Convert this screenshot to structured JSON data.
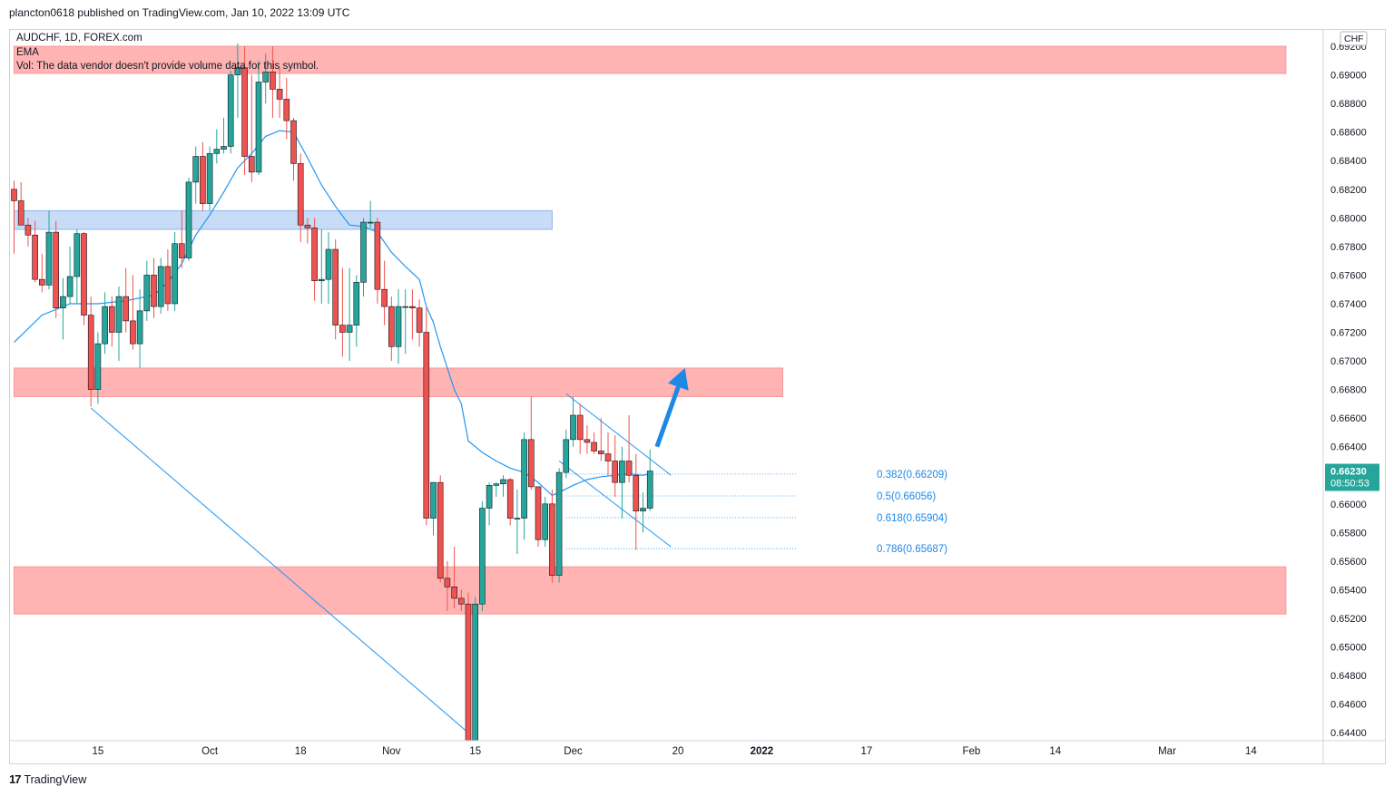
{
  "header": {
    "published": "plancton0618 published on TradingView.com, Jan 10, 2022 13:09 UTC"
  },
  "legend": {
    "symbol": "AUDCHF, 1D, FOREX.com",
    "ema": "EMA",
    "vol": "Vol: The data vendor doesn't provide volume data for this symbol."
  },
  "footer": {
    "brand": "TradingView",
    "logo": "17"
  },
  "colors": {
    "up": "#26a69a",
    "down": "#ef5350",
    "ema": "#2196f3",
    "zone_red": "#ffb3b3",
    "zone_blue": "#c8dcf7",
    "arrow": "#1e88e5"
  },
  "chart_data": {
    "type": "candlestick",
    "symbol": "AUDCHF",
    "interval": "1D",
    "currency": "CHF",
    "ylim": [
      0.6433,
      0.6925
    ],
    "y_ticks": [
      "0.64400",
      "0.64600",
      "0.64800",
      "0.65000",
      "0.65200",
      "0.65400",
      "0.65600",
      "0.65800",
      "0.66000",
      "0.66200",
      "0.66400",
      "0.66600",
      "0.66800",
      "0.67000",
      "0.67200",
      "0.67400",
      "0.67600",
      "0.67800",
      "0.68000",
      "0.68200",
      "0.68400",
      "0.68600",
      "0.68800",
      "0.69000",
      "0.69200"
    ],
    "x_ticks": [
      {
        "label": "15",
        "day": -52
      },
      {
        "label": "Oct",
        "day": -36
      },
      {
        "label": "18",
        "day": -23
      },
      {
        "label": "Nov",
        "day": -10
      },
      {
        "label": "15",
        "day": 2
      },
      {
        "label": "Dec",
        "day": 16
      },
      {
        "label": "20",
        "day": 31
      },
      {
        "label": "2022",
        "day": 43
      },
      {
        "label": "17",
        "day": 58
      },
      {
        "label": "Feb",
        "day": 73
      },
      {
        "label": "14",
        "day": 85
      },
      {
        "label": "Mar",
        "day": 101
      },
      {
        "label": "14",
        "day": 113
      }
    ],
    "ohlc": [
      [
        -64,
        0.682,
        0.6826,
        0.6775,
        0.6812
      ],
      [
        -63,
        0.6812,
        0.6825,
        0.6795,
        0.6795
      ],
      [
        -62,
        0.6795,
        0.68,
        0.678,
        0.6788
      ],
      [
        -61,
        0.6788,
        0.6798,
        0.6755,
        0.6757
      ],
      [
        -60,
        0.6757,
        0.6775,
        0.6748,
        0.6753
      ],
      [
        -59,
        0.6753,
        0.6805,
        0.675,
        0.679
      ],
      [
        -58,
        0.679,
        0.6798,
        0.673,
        0.6737
      ],
      [
        -57,
        0.6737,
        0.6758,
        0.6715,
        0.6745
      ],
      [
        -56,
        0.6745,
        0.678,
        0.674,
        0.6759
      ],
      [
        -55,
        0.6759,
        0.6792,
        0.674,
        0.6789
      ],
      [
        -54,
        0.6789,
        0.679,
        0.6725,
        0.6732
      ],
      [
        -53,
        0.6732,
        0.6745,
        0.6668,
        0.668
      ],
      [
        -52,
        0.668,
        0.672,
        0.667,
        0.6712
      ],
      [
        -51,
        0.6712,
        0.6748,
        0.6705,
        0.6738
      ],
      [
        -50,
        0.6738,
        0.6745,
        0.671,
        0.672
      ],
      [
        -49,
        0.672,
        0.6752,
        0.67,
        0.6745
      ],
      [
        -48,
        0.6745,
        0.6765,
        0.672,
        0.6728
      ],
      [
        -47,
        0.6728,
        0.676,
        0.6708,
        0.6712
      ],
      [
        -46,
        0.6712,
        0.675,
        0.6695,
        0.6735
      ],
      [
        -45,
        0.6735,
        0.677,
        0.6728,
        0.676
      ],
      [
        -44,
        0.676,
        0.6772,
        0.673,
        0.6738
      ],
      [
        -43,
        0.6738,
        0.6772,
        0.6733,
        0.6766
      ],
      [
        -42,
        0.6766,
        0.6778,
        0.6735,
        0.674
      ],
      [
        -41,
        0.674,
        0.679,
        0.6735,
        0.6782
      ],
      [
        -40,
        0.6782,
        0.6805,
        0.6765,
        0.6772
      ],
      [
        -39,
        0.6772,
        0.6828,
        0.677,
        0.6825
      ],
      [
        -38,
        0.6825,
        0.685,
        0.681,
        0.6843
      ],
      [
        -37,
        0.6843,
        0.6853,
        0.6805,
        0.681
      ],
      [
        -36,
        0.681,
        0.685,
        0.6805,
        0.6845
      ],
      [
        -35,
        0.6845,
        0.6862,
        0.6838,
        0.6848
      ],
      [
        -34,
        0.6848,
        0.687,
        0.6845,
        0.685
      ],
      [
        -33,
        0.685,
        0.6903,
        0.6845,
        0.69
      ],
      [
        -32,
        0.69,
        0.6922,
        0.687,
        0.6905
      ],
      [
        -31,
        0.6905,
        0.692,
        0.683,
        0.6843
      ],
      [
        -30,
        0.6843,
        0.69,
        0.6825,
        0.6832
      ],
      [
        -29,
        0.6832,
        0.691,
        0.683,
        0.6895
      ],
      [
        -28,
        0.6895,
        0.6915,
        0.688,
        0.6902
      ],
      [
        -27,
        0.6902,
        0.692,
        0.687,
        0.689
      ],
      [
        -26,
        0.689,
        0.6905,
        0.687,
        0.6883
      ],
      [
        -25,
        0.6883,
        0.6898,
        0.6855,
        0.6868
      ],
      [
        -24,
        0.6868,
        0.687,
        0.6826,
        0.6838
      ],
      [
        -23,
        0.6838,
        0.6845,
        0.6783,
        0.6795
      ],
      [
        -22,
        0.6795,
        0.68,
        0.6782,
        0.6793
      ],
      [
        -21,
        0.6793,
        0.68,
        0.6742,
        0.6756
      ],
      [
        -20,
        0.6756,
        0.6792,
        0.674,
        0.6757
      ],
      [
        -19,
        0.6757,
        0.679,
        0.674,
        0.6778
      ],
      [
        -18,
        0.6778,
        0.6785,
        0.6715,
        0.6725
      ],
      [
        -17,
        0.6725,
        0.6765,
        0.6703,
        0.672
      ],
      [
        -16,
        0.672,
        0.6765,
        0.67,
        0.6725
      ],
      [
        -15,
        0.6725,
        0.676,
        0.671,
        0.6755
      ],
      [
        -14,
        0.6755,
        0.68,
        0.6745,
        0.6797
      ],
      [
        -13,
        0.6797,
        0.6812,
        0.6793,
        0.6797
      ],
      [
        -12,
        0.6797,
        0.68,
        0.674,
        0.675
      ],
      [
        -11,
        0.675,
        0.677,
        0.6725,
        0.6738
      ],
      [
        -10,
        0.6738,
        0.6745,
        0.67,
        0.671
      ],
      [
        -9,
        0.671,
        0.675,
        0.6698,
        0.6738
      ],
      [
        -8,
        0.6738,
        0.675,
        0.6705,
        0.6738
      ],
      [
        -7,
        0.6738,
        0.675,
        0.6715,
        0.6737
      ],
      [
        -6,
        0.6737,
        0.6743,
        0.671,
        0.672
      ],
      [
        -5,
        0.672,
        0.6737,
        0.6585,
        0.659
      ],
      [
        -4,
        0.659,
        0.6615,
        0.6578,
        0.6615
      ],
      [
        -3,
        0.6615,
        0.662,
        0.6545,
        0.6548
      ],
      [
        -2,
        0.6548,
        0.656,
        0.6525,
        0.6542
      ],
      [
        -1,
        0.6542,
        0.657,
        0.6527,
        0.6534
      ],
      [
        0,
        0.6534,
        0.654,
        0.6525,
        0.653
      ],
      [
        1,
        0.653,
        0.6538,
        0.6433,
        0.6433
      ],
      [
        2,
        0.6433,
        0.6535,
        0.6433,
        0.653
      ],
      [
        3,
        0.653,
        0.6602,
        0.6525,
        0.6597
      ],
      [
        4,
        0.6597,
        0.6615,
        0.6585,
        0.6613
      ],
      [
        5,
        0.6613,
        0.6615,
        0.6605,
        0.6614
      ],
      [
        6,
        0.6614,
        0.662,
        0.6605,
        0.6617
      ],
      [
        7,
        0.6617,
        0.6618,
        0.6585,
        0.659
      ],
      [
        8,
        0.659,
        0.661,
        0.6565,
        0.659
      ],
      [
        9,
        0.659,
        0.665,
        0.6575,
        0.6645
      ],
      [
        10,
        0.6645,
        0.6675,
        0.661,
        0.6612
      ],
      [
        11,
        0.6612,
        0.6612,
        0.657,
        0.6575
      ],
      [
        12,
        0.6575,
        0.6605,
        0.657,
        0.66
      ],
      [
        13,
        0.66,
        0.661,
        0.6545,
        0.655
      ],
      [
        14,
        0.655,
        0.6625,
        0.6545,
        0.6622
      ],
      [
        15,
        0.6622,
        0.6652,
        0.6618,
        0.6645
      ],
      [
        16,
        0.6645,
        0.6675,
        0.664,
        0.6662
      ],
      [
        17,
        0.6662,
        0.667,
        0.6635,
        0.6645
      ],
      [
        18,
        0.6645,
        0.6655,
        0.6635,
        0.6643
      ],
      [
        19,
        0.6643,
        0.665,
        0.6635,
        0.6637
      ],
      [
        20,
        0.6637,
        0.666,
        0.663,
        0.6635
      ],
      [
        21,
        0.6635,
        0.665,
        0.662,
        0.663
      ],
      [
        22,
        0.663,
        0.6648,
        0.6605,
        0.6615
      ],
      [
        23,
        0.6615,
        0.664,
        0.659,
        0.663
      ],
      [
        24,
        0.663,
        0.6662,
        0.6615,
        0.662
      ],
      [
        25,
        0.662,
        0.6635,
        0.6568,
        0.6595
      ],
      [
        26,
        0.6595,
        0.6608,
        0.658,
        0.6597
      ],
      [
        27,
        0.6597,
        0.6638,
        0.6595,
        0.6623
      ]
    ],
    "ema": [
      [
        -64,
        0.6713
      ],
      [
        -60,
        0.6732
      ],
      [
        -56,
        0.674
      ],
      [
        -52,
        0.674
      ],
      [
        -48,
        0.6742
      ],
      [
        -44,
        0.6746
      ],
      [
        -42,
        0.6755
      ],
      [
        -40,
        0.6768
      ],
      [
        -38,
        0.6788
      ],
      [
        -36,
        0.6802
      ],
      [
        -34,
        0.6818
      ],
      [
        -32,
        0.6835
      ],
      [
        -30,
        0.6845
      ],
      [
        -28,
        0.6857
      ],
      [
        -26,
        0.6861
      ],
      [
        -24,
        0.686
      ],
      [
        -22,
        0.6842
      ],
      [
        -20,
        0.6823
      ],
      [
        -18,
        0.6808
      ],
      [
        -16,
        0.6795
      ],
      [
        -14,
        0.6794
      ],
      [
        -12,
        0.679
      ],
      [
        -10,
        0.6776
      ],
      [
        -8,
        0.6766
      ],
      [
        -6,
        0.6757
      ],
      [
        -5,
        0.6738
      ],
      [
        -4,
        0.6727
      ],
      [
        -3,
        0.671
      ],
      [
        -2,
        0.6695
      ],
      [
        -1,
        0.668
      ],
      [
        0,
        0.667
      ],
      [
        1,
        0.6644
      ],
      [
        2,
        0.664
      ],
      [
        3,
        0.6636
      ],
      [
        5,
        0.663
      ],
      [
        7,
        0.6625
      ],
      [
        9,
        0.6622
      ],
      [
        11,
        0.6615
      ],
      [
        13,
        0.6606
      ],
      [
        14,
        0.6608
      ],
      [
        16,
        0.6613
      ],
      [
        18,
        0.6617
      ],
      [
        20,
        0.6619
      ],
      [
        22,
        0.662
      ],
      [
        24,
        0.6621
      ],
      [
        26,
        0.662
      ],
      [
        27,
        0.6621
      ]
    ],
    "zones": [
      {
        "color": "red",
        "y0": 0.6901,
        "y1": 0.692,
        "day0": -64,
        "day1": 118
      },
      {
        "color": "blue",
        "y0": 0.6792,
        "y1": 0.6805,
        "day0": -64,
        "day1": 13
      },
      {
        "color": "red",
        "y0": 0.6675,
        "y1": 0.6695,
        "day0": -64,
        "day1": 46
      },
      {
        "color": "red",
        "y0": 0.6523,
        "y1": 0.6556,
        "day0": -64,
        "day1": 118
      }
    ],
    "trendlines": [
      {
        "from": [
          -53,
          0.6667
        ],
        "to": [
          1,
          0.644
        ]
      },
      {
        "from": [
          15,
          0.6677
        ],
        "to": [
          30,
          0.662
        ]
      },
      {
        "from": [
          14,
          0.663
        ],
        "to": [
          30,
          0.657
        ]
      }
    ],
    "fib_levels": [
      {
        "label": "0.382(0.66209)",
        "value": 0.66209
      },
      {
        "label": "0.5(0.66056)",
        "value": 0.66056
      },
      {
        "label": "0.618(0.65904)",
        "value": 0.65904
      },
      {
        "label": "0.786(0.65687)",
        "value": 0.65687
      }
    ],
    "fib_day_range": [
      15,
      48
    ],
    "arrow": {
      "from": [
        28,
        0.664
      ],
      "to": [
        32,
        0.6695
      ]
    },
    "last_price": {
      "value": "0.66230",
      "countdown": "08:50:53",
      "price": 0.6623
    }
  }
}
